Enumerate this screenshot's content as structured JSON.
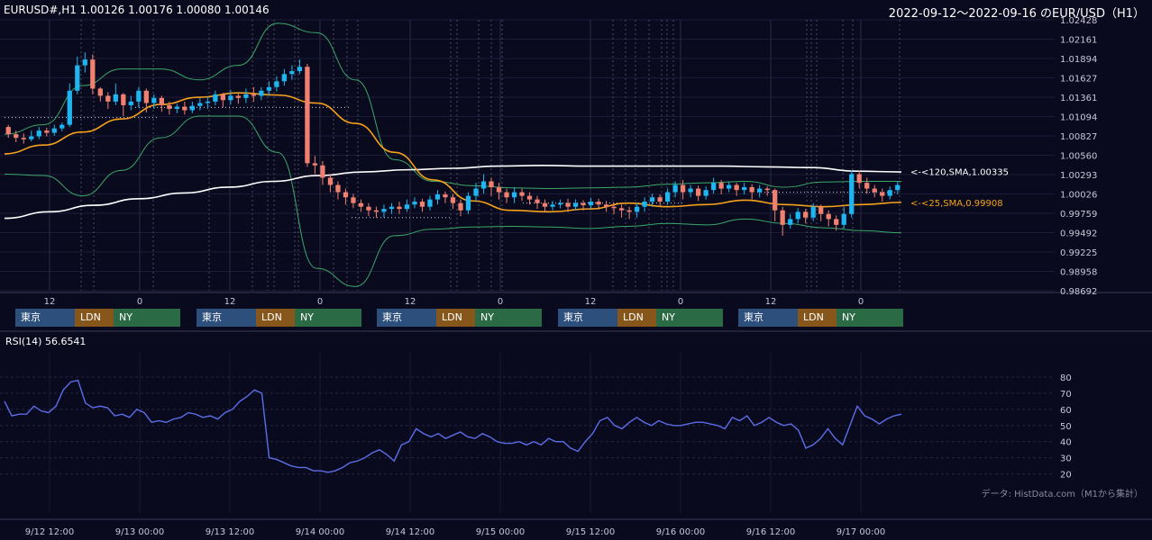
{
  "header": {
    "symbol_info": "EURUSD#,H1 1.00126 1.00176 1.00080 1.00146",
    "range_title": "2022-09-12～2022-09-16 のEUR/USD（H1）"
  },
  "rsi_label": "RSI(14) 56.6541",
  "credit": "データ: HistData.com（M1から集計）",
  "sessions": {
    "tokyo": "東京",
    "london": "LDN",
    "ny": "NY"
  },
  "colors": {
    "background": "#0a0a1e",
    "up": "#1fb5f0",
    "down": "#f08070",
    "sma25": "#f7a21b",
    "sma120": "#ffffff",
    "bollinger": "#3aa868",
    "rsi": "#5b6ee8",
    "tokyo": "#2c4f7c",
    "london": "#86561a",
    "ny": "#2a6a44"
  },
  "chart_data": [
    {
      "type": "candlestick",
      "title": "EURUSD#,H1",
      "y_ticks": [
        "1.02428",
        "1.02161",
        "1.01894",
        "1.01627",
        "1.01361",
        "1.01094",
        "1.00827",
        "1.00560",
        "1.00293",
        "1.00026",
        "0.99759",
        "0.99492",
        "0.99225",
        "0.98958",
        "0.98692"
      ],
      "ylim": [
        0.98692,
        1.02428
      ],
      "x_ticks_top": [
        "12",
        "0",
        "12",
        "0",
        "12",
        "0",
        "12",
        "0",
        "12",
        "0"
      ],
      "x_ticks_bottom": [
        "9/12 12:00",
        "9/13 00:00",
        "9/13 12:00",
        "9/14 00:00",
        "9/14 12:00",
        "9/15 00:00",
        "9/15 12:00",
        "9/16 00:00",
        "9/16 12:00",
        "9/17 00:00"
      ],
      "annotations": [
        {
          "text": "<-<120,SMA,1.00335",
          "value": 1.00335,
          "color": "#ffffff"
        },
        {
          "text": "<-<25,SMA,0.99908",
          "value": 0.99908,
          "color": "#f7a21b"
        }
      ],
      "series": [
        {
          "name": "SMA 25",
          "values": [
            1.0058,
            1.007,
            1.0088,
            1.0106,
            1.0126,
            1.0136,
            1.0142,
            1.0139,
            1.0128,
            1.01,
            1.006,
            1.0022,
            0.9993,
            0.998,
            0.9978,
            0.9982,
            0.999,
            0.9985,
            0.9988,
            0.9994,
            0.9988,
            0.9985,
            0.9988,
            0.9991
          ]
        },
        {
          "name": "SMA 120",
          "values": [
            0.9969,
            0.9978,
            0.9987,
            0.9996,
            1.0004,
            1.0012,
            1.002,
            1.0028,
            1.0033,
            1.0036,
            1.0038,
            1.0041,
            1.0042,
            1.0041,
            1.0041,
            1.0041,
            1.0041,
            1.004,
            1.0039,
            1.0034,
            1.0033
          ]
        },
        {
          "name": "BB upper",
          "values": [
            1.0085,
            1.0098,
            1.0152,
            1.0175,
            1.0175,
            1.016,
            1.018,
            1.0238,
            1.0225,
            1.016,
            1.005,
            1.002,
            1.0014,
            1.0011,
            1.001,
            1.0011,
            1.0012,
            1.0016,
            1.0018,
            1.002,
            1.0012,
            1.0019,
            1.002,
            1.002
          ]
        },
        {
          "name": "BB lower",
          "values": [
            1.003,
            1.0028,
            1.0,
            1.0035,
            1.008,
            1.011,
            1.011,
            1.006,
            0.99,
            0.9875,
            0.9945,
            0.9954,
            0.9957,
            0.9958,
            0.9957,
            0.9955,
            0.9958,
            0.9962,
            0.996,
            0.9968,
            0.9962,
            0.9956,
            0.9952,
            0.9949
          ]
        }
      ],
      "candles": [
        [
          1.0095,
          1.0085,
          1.0098,
          1.008
        ],
        [
          1.0085,
          1.008,
          1.009,
          1.0074
        ],
        [
          1.008,
          1.0078,
          1.0086,
          1.0072
        ],
        [
          1.0078,
          1.0082,
          1.009,
          1.0075
        ],
        [
          1.0082,
          1.009,
          1.0095,
          1.0078
        ],
        [
          1.009,
          1.0087,
          1.0094,
          1.0082
        ],
        [
          1.0087,
          1.0093,
          1.0098,
          1.0083
        ],
        [
          1.0093,
          1.0098,
          1.0101,
          1.0089
        ],
        [
          1.0098,
          1.0145,
          1.0155,
          1.0095
        ],
        [
          1.0145,
          1.018,
          1.0192,
          1.014
        ],
        [
          1.018,
          1.0188,
          1.0198,
          1.017
        ],
        [
          1.0188,
          1.0148,
          1.0195,
          1.014
        ],
        [
          1.0148,
          1.0138,
          1.015,
          1.013
        ],
        [
          1.0138,
          1.013,
          1.0143,
          1.012
        ],
        [
          1.013,
          1.014,
          1.0155,
          1.0125
        ],
        [
          1.014,
          1.0125,
          1.0142,
          1.011
        ],
        [
          1.0125,
          1.013,
          1.0138,
          1.0118
        ],
        [
          1.013,
          1.0145,
          1.015,
          1.0122
        ],
        [
          1.0145,
          1.0128,
          1.0148,
          1.0115
        ],
        [
          1.0128,
          1.0135,
          1.014,
          1.012
        ],
        [
          1.0135,
          1.0125,
          1.0138,
          1.0116
        ],
        [
          1.0125,
          1.012,
          1.013,
          1.0112
        ],
        [
          1.012,
          1.0123,
          1.0127,
          1.0114
        ],
        [
          1.0123,
          1.0118,
          1.013,
          1.0112
        ],
        [
          1.0118,
          1.0124,
          1.013,
          1.0114
        ],
        [
          1.0124,
          1.0128,
          1.0135,
          1.0118
        ],
        [
          1.0128,
          1.013,
          1.0137,
          1.012
        ],
        [
          1.013,
          1.014,
          1.0145,
          1.0125
        ],
        [
          1.014,
          1.0132,
          1.0142,
          1.0122
        ],
        [
          1.0132,
          1.0138,
          1.0146,
          1.0126
        ],
        [
          1.0138,
          1.0135,
          1.0143,
          1.0127
        ],
        [
          1.0135,
          1.014,
          1.0148,
          1.0128
        ],
        [
          1.014,
          1.0138,
          1.015,
          1.013
        ],
        [
          1.0138,
          1.0145,
          1.015,
          1.0132
        ],
        [
          1.0145,
          1.015,
          1.0158,
          1.0138
        ],
        [
          1.015,
          1.0158,
          1.0165,
          1.0144
        ],
        [
          1.0158,
          1.0168,
          1.0175,
          1.0152
        ],
        [
          1.0168,
          1.0172,
          1.018,
          1.016
        ],
        [
          1.0172,
          1.0178,
          1.0188,
          1.0168
        ],
        [
          1.0178,
          1.0045,
          1.0182,
          1.004
        ],
        [
          1.0045,
          1.0042,
          1.0055,
          1.003
        ],
        [
          1.0042,
          1.0025,
          1.0048,
          1.0015
        ],
        [
          1.0025,
          1.0015,
          1.003,
          1.0005
        ],
        [
          1.0015,
          1.0005,
          1.002,
          0.9995
        ],
        [
          1.0005,
          0.9998,
          1.001,
          0.9988
        ],
        [
          0.9998,
          0.999,
          1.0003,
          0.9983
        ],
        [
          0.999,
          0.9985,
          0.9995,
          0.9978
        ],
        [
          0.9985,
          0.998,
          0.999,
          0.9972
        ],
        [
          0.998,
          0.9978,
          0.9985,
          0.997
        ],
        [
          0.9978,
          0.9982,
          0.9988,
          0.997
        ],
        [
          0.9982,
          0.9985,
          0.999,
          0.9975
        ],
        [
          0.9985,
          0.9982,
          0.9992,
          0.9975
        ],
        [
          0.9982,
          0.9988,
          0.9995,
          0.9978
        ],
        [
          0.9988,
          0.9992,
          0.9998,
          0.9983
        ],
        [
          0.9992,
          0.9985,
          0.9996,
          0.9978
        ],
        [
          0.9985,
          0.9995,
          1.0,
          0.998
        ],
        [
          0.9995,
          1.0002,
          1.0008,
          0.9988
        ],
        [
          1.0002,
          0.9998,
          1.0006,
          0.999
        ],
        [
          0.9998,
          0.999,
          1.0003,
          0.9982
        ],
        [
          0.999,
          0.998,
          0.9995,
          0.9972
        ],
        [
          0.998,
          1.0,
          1.0005,
          0.9975
        ],
        [
          1.0,
          1.001,
          1.0018,
          0.9993
        ],
        [
          1.001,
          1.002,
          1.003,
          1.0003
        ],
        [
          1.002,
          1.0012,
          1.0025,
          1.0
        ],
        [
          1.0012,
          1.0005,
          1.0018,
          0.9995
        ],
        [
          1.0005,
          0.9998,
          1.001,
          0.999
        ],
        [
          0.9998,
          1.0005,
          1.0012,
          0.999
        ],
        [
          1.0005,
          1.0,
          1.001,
          0.9993
        ],
        [
          1.0,
          0.9995,
          1.0005,
          0.9988
        ],
        [
          0.9995,
          0.999,
          1.0,
          0.9982
        ],
        [
          0.999,
          0.9985,
          0.9995,
          0.9978
        ],
        [
          0.9985,
          0.9988,
          0.9993,
          0.998
        ],
        [
          0.9988,
          0.999,
          0.9995,
          0.9983
        ],
        [
          0.999,
          0.9985,
          0.9996,
          0.9978
        ],
        [
          0.9985,
          0.999,
          0.9995,
          0.998
        ],
        [
          0.999,
          0.9987,
          0.9994,
          0.998
        ],
        [
          0.9987,
          0.9992,
          0.9997,
          0.9982
        ],
        [
          0.9992,
          0.9988,
          0.9996,
          0.9981
        ],
        [
          0.9988,
          0.9985,
          0.9993,
          0.9978
        ],
        [
          0.9985,
          0.9983,
          0.999,
          0.9975
        ],
        [
          0.9983,
          0.998,
          0.9988,
          0.997
        ],
        [
          0.998,
          0.9978,
          0.9985,
          0.9968
        ],
        [
          0.9978,
          0.9985,
          0.999,
          0.997
        ],
        [
          0.9985,
          0.9992,
          0.9998,
          0.9978
        ],
        [
          0.9992,
          0.9998,
          1.0003,
          0.9985
        ],
        [
          0.9998,
          0.9992,
          1.0002,
          0.9985
        ],
        [
          0.9992,
          1.0005,
          1.001,
          0.9988
        ],
        [
          1.0005,
          1.0015,
          1.002,
          0.9998
        ],
        [
          1.0015,
          1.0005,
          1.0022,
          0.9995
        ],
        [
          1.0005,
          1.001,
          1.0015,
          0.9998
        ],
        [
          1.001,
          1.0,
          1.0014,
          0.9993
        ],
        [
          1.0,
          1.0008,
          1.0013,
          0.9995
        ],
        [
          1.0008,
          1.0018,
          1.0025,
          1.0003
        ],
        [
          1.0018,
          1.001,
          1.0022,
          1.0002
        ],
        [
          1.001,
          1.0015,
          1.002,
          1.0005
        ],
        [
          1.0015,
          1.0008,
          1.0018,
          1.0
        ],
        [
          1.0008,
          1.0012,
          1.0018,
          1.0002
        ],
        [
          1.0012,
          1.0005,
          1.0016,
          0.9995
        ],
        [
          1.0005,
          1.001,
          1.0015,
          0.9998
        ],
        [
          1.001,
          1.0008,
          1.0013,
          1.0
        ],
        [
          1.0008,
          0.998,
          1.001,
          0.9965
        ],
        [
          0.998,
          0.996,
          0.9985,
          0.9945
        ],
        [
          0.996,
          0.9968,
          0.9975,
          0.9955
        ],
        [
          0.9968,
          0.9978,
          0.9983,
          0.9962
        ],
        [
          0.9978,
          0.997,
          0.9982,
          0.9962
        ],
        [
          0.997,
          0.9985,
          0.999,
          0.9965
        ],
        [
          0.9985,
          0.9975,
          0.9988,
          0.9965
        ],
        [
          0.9975,
          0.9968,
          0.998,
          0.9958
        ],
        [
          0.9968,
          0.996,
          0.9973,
          0.9952
        ],
        [
          0.996,
          0.9975,
          0.9985,
          0.9955
        ],
        [
          0.9975,
          1.003,
          1.0035,
          0.997
        ],
        [
          1.003,
          1.0018,
          1.0035,
          1.001
        ],
        [
          1.0018,
          1.001,
          1.0025,
          1.0003
        ],
        [
          1.001,
          1.0005,
          1.0015,
          0.9998
        ],
        [
          1.0005,
          1.0,
          1.001,
          0.9992
        ],
        [
          1.0,
          1.0008,
          1.0013,
          0.9995
        ],
        [
          1.0008,
          1.0015,
          1.002,
          1.0002
        ]
      ]
    },
    {
      "type": "line",
      "title": "RSI(14)",
      "y_ticks": [
        "80",
        "70",
        "60",
        "50",
        "40",
        "30",
        "20"
      ],
      "ylim": [
        17,
        85
      ],
      "series": [
        {
          "name": "RSI(14)",
          "values": [
            65,
            56,
            57,
            57,
            62,
            59,
            58,
            62,
            72,
            77,
            78,
            64,
            61,
            62,
            61,
            56,
            57,
            55,
            60,
            58,
            52,
            53,
            52,
            54,
            55,
            58,
            57,
            55,
            56,
            54,
            58,
            60,
            65,
            68,
            72,
            70,
            30,
            29,
            27,
            25,
            24,
            24,
            22,
            22,
            21,
            22,
            24,
            27,
            28,
            30,
            33,
            35,
            32,
            28,
            38,
            40,
            48,
            45,
            43,
            45,
            42,
            44,
            46,
            43,
            42,
            45,
            43,
            40,
            39,
            39,
            40,
            38,
            40,
            38,
            42,
            40,
            40,
            36,
            34,
            40,
            45,
            53,
            55,
            50,
            48,
            52,
            55,
            52,
            50,
            53,
            51,
            50,
            50,
            51,
            52,
            52,
            51,
            50,
            48,
            55,
            53,
            56,
            50,
            52,
            55,
            52,
            50,
            51,
            47,
            36,
            38,
            42,
            48,
            42,
            38,
            50,
            62,
            56,
            54,
            51,
            54,
            56,
            57
          ]
        }
      ]
    }
  ]
}
